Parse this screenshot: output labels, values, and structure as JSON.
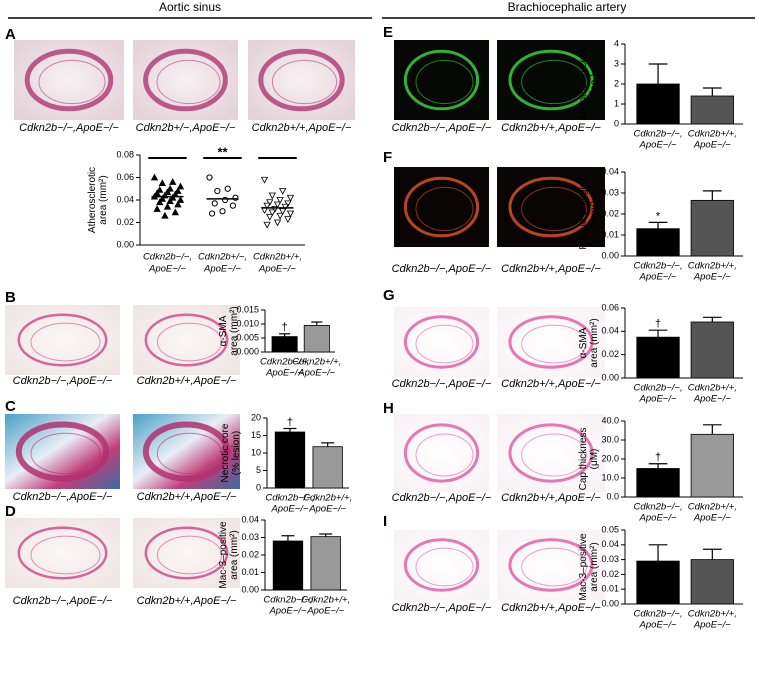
{
  "headers": [
    "Aortic sinus",
    "Brachiocephalic artery"
  ],
  "panels": [
    {
      "label": "A",
      "captions": [
        "Cdkn2b−/−,ApoE−/−",
        "Cdkn2b+/−,ApoE−/−",
        "Cdkn2b+/+,ApoE−/−"
      ]
    },
    {
      "label": "B",
      "captions": [
        "Cdkn2b−/−,ApoE−/−",
        "Cdkn2b+/+,ApoE−/−"
      ]
    },
    {
      "label": "C",
      "captions": [
        "Cdkn2b−/−,ApoE−/−",
        "Cdkn2b+/+,ApoE−/−"
      ]
    },
    {
      "label": "D",
      "captions": [
        "Cdkn2b−/−,ApoE−/−",
        "Cdkn2b+/+,ApoE−/−"
      ]
    },
    {
      "label": "E",
      "captions": [
        "Cdkn2b−/−,ApoE−/−",
        "Cdkn2b+/+,ApoE−/−"
      ]
    },
    {
      "label": "F",
      "captions": [
        "Cdkn2b−/−,ApoE−/−",
        "Cdkn2b+/+,ApoE−/−"
      ]
    },
    {
      "label": "G",
      "captions": [
        "Cdkn2b−/−,ApoE−/−",
        "Cdkn2b+/+,ApoE−/−"
      ]
    },
    {
      "label": "H",
      "captions": [
        "Cdkn2b−/−,ApoE−/−",
        "Cdkn2b+/+,ApoE−/−"
      ]
    },
    {
      "label": "I",
      "captions": [
        "Cdkn2b−/−,ApoE−/−",
        "Cdkn2b+/+,ApoE−/−"
      ]
    }
  ],
  "chart_data": [
    {
      "type": "strip",
      "ylabel": [
        "Atherosclerotic",
        "area (mm²)"
      ],
      "categories": [
        [
          "Cdkn2b−/−,",
          "ApoE−/−"
        ],
        [
          "Cdkn2b+/−,",
          "ApoE−/−"
        ],
        [
          "Cdkn2b+/+,",
          "ApoE−/−"
        ]
      ],
      "markers": [
        "triangle",
        "circle",
        "triangle-down"
      ],
      "values": [
        [
          0.06,
          0.056,
          0.055,
          0.052,
          0.05,
          0.049,
          0.048,
          0.047,
          0.046,
          0.045,
          0.044,
          0.043,
          0.042,
          0.041,
          0.04,
          0.039,
          0.038,
          0.036,
          0.034,
          0.032,
          0.029,
          0.026
        ],
        [
          0.06,
          0.05,
          0.048,
          0.042,
          0.04,
          0.037,
          0.035,
          0.03,
          0.028
        ],
        [
          0.058,
          0.048,
          0.044,
          0.042,
          0.04,
          0.038,
          0.037,
          0.036,
          0.035,
          0.034,
          0.032,
          0.031,
          0.03,
          0.029,
          0.028,
          0.026,
          0.025,
          0.023,
          0.02,
          0.018
        ]
      ],
      "means": [
        0.043,
        0.041,
        0.033
      ],
      "annotation": "**",
      "ylim": [
        0,
        0.08
      ],
      "yticks": [
        {
          "value": 0,
          "label": "0.00"
        },
        0.02,
        0.04,
        0.06,
        0.08
      ]
    },
    {
      "type": "bar",
      "ylabel": [
        "α-SMA",
        "area (mm²)"
      ],
      "categories": [
        [
          "Cdkn2b−/−,",
          "ApoE−/−"
        ],
        [
          "Cdkn2b+/+,",
          "ApoE−/−"
        ]
      ],
      "values": [
        0.0055,
        0.0095
      ],
      "errors": [
        0.001,
        0.0012
      ],
      "bar_labels": [
        "†",
        null
      ],
      "colors": [
        "#000000",
        "#999999"
      ],
      "ylim": [
        0,
        0.015
      ],
      "yticks": [
        {
          "value": 0,
          "label": "0.000"
        },
        0.005,
        {
          "value": 0.01,
          "label": "0.010"
        },
        0.015
      ]
    },
    {
      "type": "bar",
      "ylabel": [
        "Necrotic core",
        "(% lesion)"
      ],
      "categories": [
        [
          "Cdkn2b−/−,",
          "ApoE−/−"
        ],
        [
          "Cdkn2b+/+,",
          "ApoE−/−"
        ]
      ],
      "values": [
        16,
        11.8
      ],
      "errors": [
        1,
        1.1
      ],
      "bar_labels": [
        "†",
        null
      ],
      "colors": [
        "#000000",
        "#999999"
      ],
      "ylim": [
        0,
        20
      ],
      "yticks": [
        0,
        5,
        10,
        15,
        20
      ]
    },
    {
      "type": "bar",
      "ylabel": [
        "Mac-3–positive",
        "area (mm²)"
      ],
      "categories": [
        [
          "Cdkn2b−/−,",
          "ApoE−/−"
        ],
        [
          "Cdkn2b+/+,",
          "ApoE−/−"
        ]
      ],
      "values": [
        0.028,
        0.0305
      ],
      "errors": [
        0.003,
        0.0015
      ],
      "bar_labels": [
        null,
        null
      ],
      "colors": [
        "#000000",
        "#999999"
      ],
      "ylim": [
        0,
        0.04
      ],
      "yticks": [
        {
          "value": 0,
          "label": "0.00"
        },
        0.01,
        0.02,
        0.03,
        0.04
      ]
    },
    {
      "type": "bar",
      "ylabel": [
        "Apoptosing cells",
        "(no.)"
      ],
      "categories": [
        [
          "Cdkn2b−/−,",
          "ApoE−/−"
        ],
        [
          "Cdkn2b+/+,",
          "ApoE−/−"
        ]
      ],
      "values": [
        2.0,
        1.4
      ],
      "errors": [
        1.0,
        0.4
      ],
      "bar_labels": [
        null,
        null
      ],
      "colors": [
        "#000000",
        "#555555"
      ],
      "ylim": [
        0,
        4
      ],
      "yticks": [
        0,
        1,
        2,
        3,
        4
      ]
    },
    {
      "type": "bar",
      "ylabel": [
        "Plaque collagen",
        "(mm²)"
      ],
      "categories": [
        [
          "Cdkn2b−/−,",
          "ApoE−/−"
        ],
        [
          "Cdkn2b+/+,",
          "ApoE−/−"
        ]
      ],
      "values": [
        0.013,
        0.0265
      ],
      "errors": [
        0.003,
        0.0045
      ],
      "bar_labels": [
        "*",
        null
      ],
      "colors": [
        "#000000",
        "#555555"
      ],
      "ylim": [
        0,
        0.04
      ],
      "yticks": [
        {
          "value": 0,
          "label": "0.00"
        },
        0.01,
        0.02,
        0.03,
        0.04
      ]
    },
    {
      "type": "bar",
      "ylabel": [
        "α-SMA",
        "area (mm²)"
      ],
      "categories": [
        [
          "Cdkn2b−/−,",
          "ApoE−/−"
        ],
        [
          "Cdkn2b+/+,",
          "ApoE−/−"
        ]
      ],
      "values": [
        0.035,
        0.048
      ],
      "errors": [
        0.006,
        0.004
      ],
      "bar_labels": [
        "†",
        null
      ],
      "colors": [
        "#000000",
        "#555555"
      ],
      "ylim": [
        0,
        0.06
      ],
      "yticks": [
        {
          "value": 0,
          "label": "0.00"
        },
        0.02,
        0.04,
        0.06
      ]
    },
    {
      "type": "bar",
      "ylabel": [
        "Cap thickness",
        "(μM)"
      ],
      "categories": [
        [
          "Cdkn2b−/−,",
          "ApoE−/−"
        ],
        [
          "Cdkn2b+/+,",
          "ApoE−/−"
        ]
      ],
      "values": [
        15,
        33
      ],
      "errors": [
        2.5,
        5
      ],
      "bar_labels": [
        "†",
        null
      ],
      "colors": [
        "#000000",
        "#999999"
      ],
      "ylim": [
        0,
        40
      ],
      "yticks": [
        {
          "value": 0,
          "label": "0.0"
        },
        {
          "value": 10,
          "label": "10.0"
        },
        {
          "value": 20,
          "label": "20.0"
        },
        {
          "value": 30,
          "label": "30.0"
        },
        {
          "value": 40,
          "label": "40.0"
        }
      ]
    },
    {
      "type": "bar",
      "ylabel": [
        "Mac-3–positive",
        "area (mm²)"
      ],
      "categories": [
        [
          "Cdkn2b−/−,",
          "ApoE−/−"
        ],
        [
          "Cdkn2b+/+,",
          "ApoE−/−"
        ]
      ],
      "values": [
        0.029,
        0.03
      ],
      "errors": [
        0.011,
        0.007
      ],
      "bar_labels": [
        null,
        null
      ],
      "colors": [
        "#000000",
        "#555555"
      ],
      "ylim": [
        0,
        0.05
      ],
      "yticks": [
        {
          "value": 0,
          "label": "0.00"
        },
        0.01,
        0.02,
        0.03,
        0.04,
        0.05
      ]
    }
  ]
}
